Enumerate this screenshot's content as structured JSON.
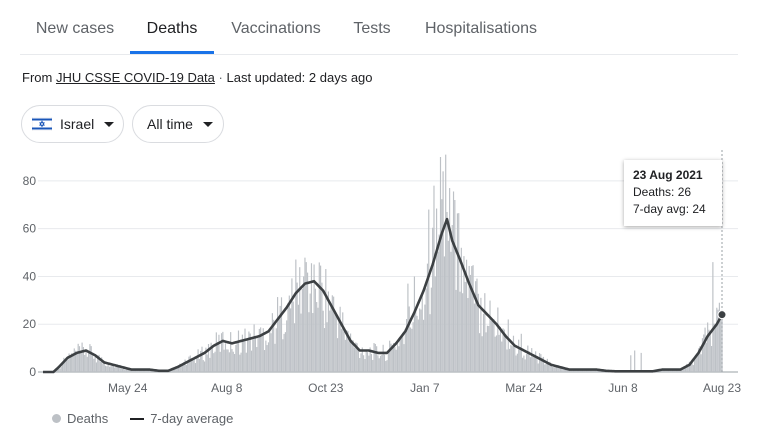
{
  "tabs": [
    {
      "label": "New cases"
    },
    {
      "label": "Deaths"
    },
    {
      "label": "Vaccinations"
    },
    {
      "label": "Tests"
    },
    {
      "label": "Hospitalisations"
    }
  ],
  "source": {
    "prefix": "From",
    "link_text": "JHU CSSE COVID-19 Data",
    "separator": "·",
    "updated": "Last updated: 2 days ago"
  },
  "filters": {
    "country": "Israel",
    "range": "All time"
  },
  "tooltip": {
    "date": "23 Aug 2021",
    "deaths_text": "Deaths: 26",
    "avg_text": "7-day avg: 24"
  },
  "legend": {
    "deaths": "Deaths",
    "average": "7-day average"
  },
  "colors": {
    "accent": "#1a73e8",
    "bars": "#bdc1c6",
    "line": "#3c4043"
  },
  "chart_data": {
    "type": "bar",
    "x_start": "2020-03-20",
    "x_end": "2021-08-23",
    "ylim": [
      0,
      90
    ],
    "yticks": [
      0,
      20,
      40,
      60,
      80
    ],
    "x_tick_labels": [
      {
        "label": "May 24",
        "date": "2020-05-24"
      },
      {
        "label": "Aug 8",
        "date": "2020-08-08"
      },
      {
        "label": "Oct 23",
        "date": "2020-10-23"
      },
      {
        "label": "Jan 7",
        "date": "2021-01-07"
      },
      {
        "label": "Mar 24",
        "date": "2021-03-24"
      },
      {
        "label": "Jun 8",
        "date": "2021-06-08"
      },
      {
        "label": "Aug 23",
        "date": "2021-08-23"
      }
    ],
    "series": [
      {
        "name": "7-day average",
        "type": "line",
        "points": [
          [
            "2020-03-20",
            0
          ],
          [
            "2020-03-28",
            0
          ],
          [
            "2020-04-01",
            2
          ],
          [
            "2020-04-08",
            6
          ],
          [
            "2020-04-15",
            8
          ],
          [
            "2020-04-22",
            9
          ],
          [
            "2020-04-29",
            7
          ],
          [
            "2020-05-06",
            4
          ],
          [
            "2020-05-13",
            3
          ],
          [
            "2020-05-20",
            2
          ],
          [
            "2020-05-27",
            1
          ],
          [
            "2020-06-03",
            1
          ],
          [
            "2020-06-10",
            1
          ],
          [
            "2020-06-17",
            0.5
          ],
          [
            "2020-06-24",
            0.5
          ],
          [
            "2020-07-01",
            2
          ],
          [
            "2020-07-08",
            4
          ],
          [
            "2020-07-15",
            6
          ],
          [
            "2020-07-22",
            8
          ],
          [
            "2020-07-29",
            11
          ],
          [
            "2020-08-05",
            13
          ],
          [
            "2020-08-12",
            12
          ],
          [
            "2020-08-19",
            13
          ],
          [
            "2020-08-26",
            14
          ],
          [
            "2020-09-02",
            15
          ],
          [
            "2020-09-09",
            17
          ],
          [
            "2020-09-16",
            22
          ],
          [
            "2020-09-23",
            27
          ],
          [
            "2020-09-30",
            33
          ],
          [
            "2020-10-07",
            37
          ],
          [
            "2020-10-14",
            38
          ],
          [
            "2020-10-21",
            34
          ],
          [
            "2020-10-28",
            27
          ],
          [
            "2020-11-04",
            20
          ],
          [
            "2020-11-11",
            13
          ],
          [
            "2020-11-18",
            9
          ],
          [
            "2020-11-25",
            9
          ],
          [
            "2020-12-02",
            8
          ],
          [
            "2020-12-09",
            8
          ],
          [
            "2020-12-16",
            12
          ],
          [
            "2020-12-23",
            17
          ],
          [
            "2020-12-30",
            25
          ],
          [
            "2021-01-06",
            34
          ],
          [
            "2021-01-13",
            45
          ],
          [
            "2021-01-20",
            58
          ],
          [
            "2021-01-24",
            64
          ],
          [
            "2021-01-28",
            55
          ],
          [
            "2021-02-03",
            47
          ],
          [
            "2021-02-10",
            37
          ],
          [
            "2021-02-17",
            28
          ],
          [
            "2021-02-24",
            24
          ],
          [
            "2021-03-03",
            20
          ],
          [
            "2021-03-10",
            15
          ],
          [
            "2021-03-17",
            11
          ],
          [
            "2021-03-24",
            9
          ],
          [
            "2021-03-31",
            7
          ],
          [
            "2021-04-07",
            5
          ],
          [
            "2021-04-14",
            3
          ],
          [
            "2021-04-21",
            2
          ],
          [
            "2021-04-28",
            1
          ],
          [
            "2021-05-05",
            1
          ],
          [
            "2021-05-12",
            1
          ],
          [
            "2021-05-19",
            1
          ],
          [
            "2021-05-26",
            0.5
          ],
          [
            "2021-06-02",
            0.3
          ],
          [
            "2021-06-16",
            0.3
          ],
          [
            "2021-07-01",
            0.3
          ],
          [
            "2021-07-08",
            1
          ],
          [
            "2021-07-15",
            1
          ],
          [
            "2021-07-22",
            1
          ],
          [
            "2021-07-29",
            3
          ],
          [
            "2021-08-05",
            8
          ],
          [
            "2021-08-12",
            15
          ],
          [
            "2021-08-19",
            20
          ],
          [
            "2021-08-23",
            24
          ]
        ]
      },
      {
        "name": "Deaths",
        "type": "bar",
        "spikes": [
          [
            "2020-10-08",
            46
          ],
          [
            "2020-10-14",
            45
          ],
          [
            "2020-10-06",
            40
          ],
          [
            "2020-09-25",
            32
          ],
          [
            "2020-12-25",
            37
          ],
          [
            "2020-12-30",
            40
          ],
          [
            "2021-01-10",
            68
          ],
          [
            "2021-01-14",
            78
          ],
          [
            "2021-01-19",
            90
          ],
          [
            "2021-01-21",
            84
          ],
          [
            "2021-01-23",
            91
          ],
          [
            "2021-01-26",
            77
          ],
          [
            "2021-01-30",
            72
          ],
          [
            "2021-02-04",
            52
          ],
          [
            "2021-02-08",
            47
          ],
          [
            "2021-02-15",
            38
          ],
          [
            "2021-02-22",
            33
          ],
          [
            "2021-03-04",
            27
          ],
          [
            "2021-03-12",
            22
          ],
          [
            "2021-03-22",
            16
          ],
          [
            "2021-06-14",
            7
          ],
          [
            "2021-06-17",
            9
          ],
          [
            "2021-06-22",
            8
          ],
          [
            "2021-08-16",
            46
          ],
          [
            "2021-08-21",
            29
          ],
          [
            "2021-08-23",
            26
          ]
        ]
      }
    ]
  }
}
